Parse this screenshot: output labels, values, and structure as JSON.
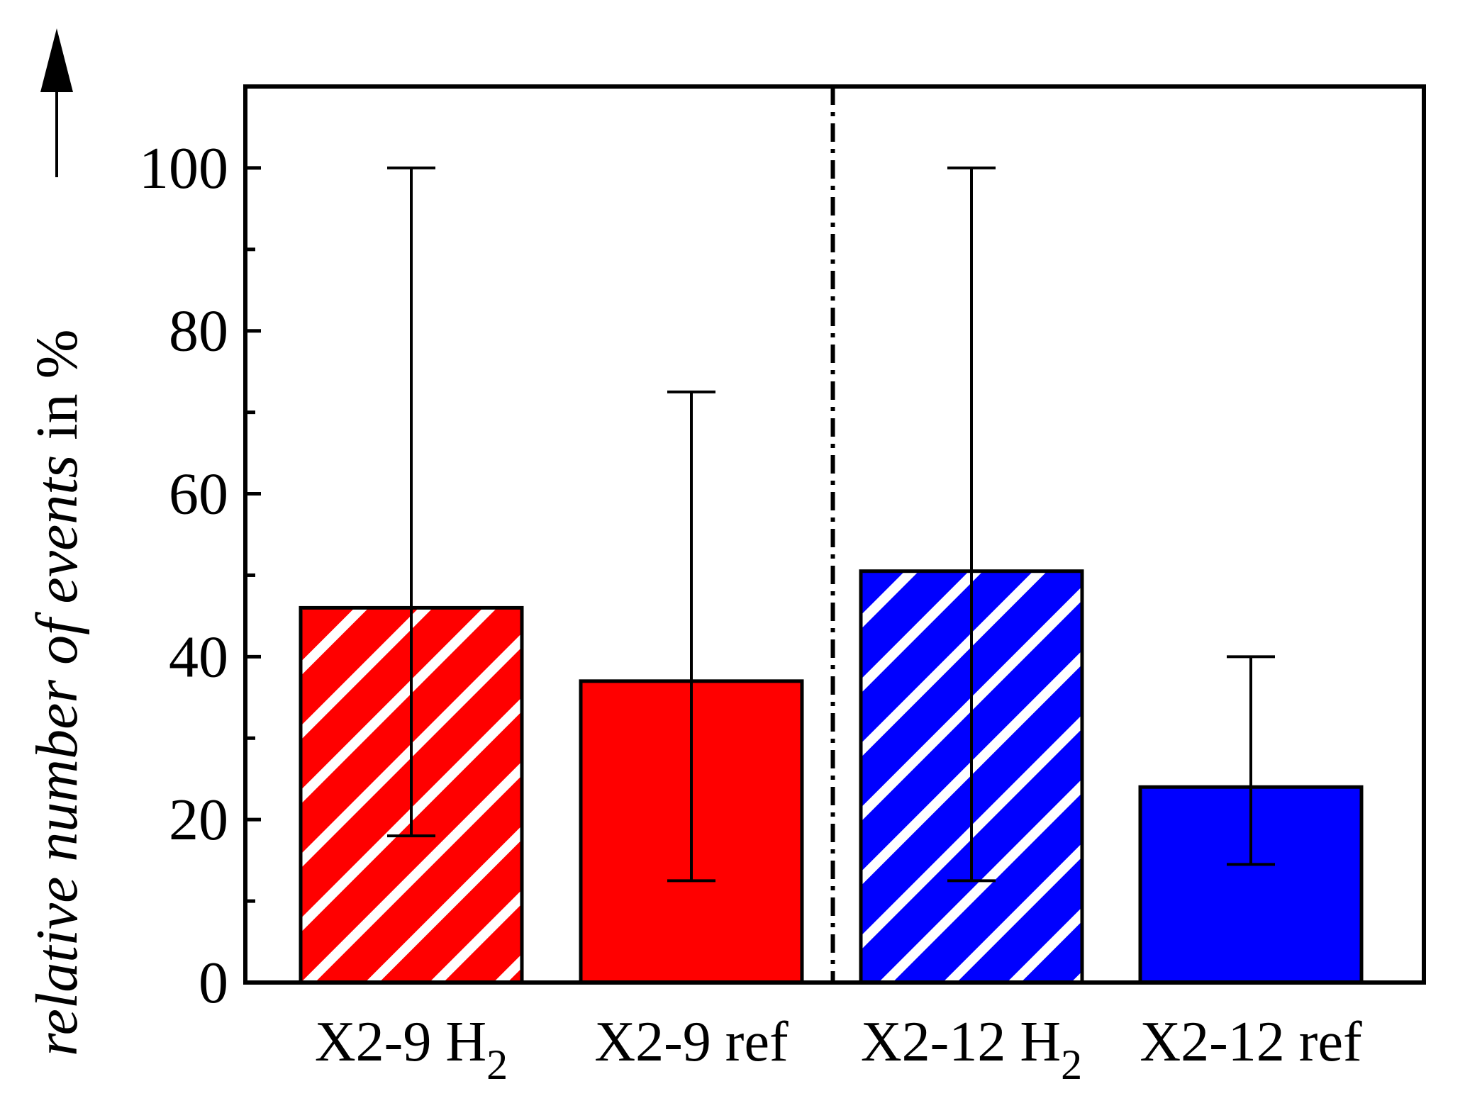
{
  "chart_data": {
    "type": "bar",
    "title": "",
    "xlabel": "",
    "ylabel": {
      "prefix": "relative number of ",
      "italic": "events",
      "suffix": " in %"
    },
    "ylim": [
      0,
      110
    ],
    "yticks": [
      0,
      20,
      40,
      60,
      80,
      100
    ],
    "yminor_ticks": [
      10,
      30,
      50,
      70,
      90
    ],
    "separator_after_index": 1,
    "categories": [
      {
        "base": "X2-9 H",
        "sub": "2"
      },
      {
        "base": "X2-9 ref",
        "sub": ""
      },
      {
        "base": "X2-12 H",
        "sub": "2"
      },
      {
        "base": "X2-12 ref",
        "sub": ""
      }
    ],
    "values": [
      46,
      37,
      50.5,
      24
    ],
    "error_bars": [
      {
        "low": 18,
        "high": 100
      },
      {
        "low": 12.5,
        "high": 72.5
      },
      {
        "low": 12.5,
        "high": 100
      },
      {
        "low": 14.5,
        "high": 40
      }
    ],
    "bars": [
      {
        "color": "#ff0000",
        "hatched": true
      },
      {
        "color": "#ff0000",
        "hatched": false
      },
      {
        "color": "#0000ff",
        "hatched": true
      },
      {
        "color": "#0000ff",
        "hatched": false
      }
    ]
  }
}
